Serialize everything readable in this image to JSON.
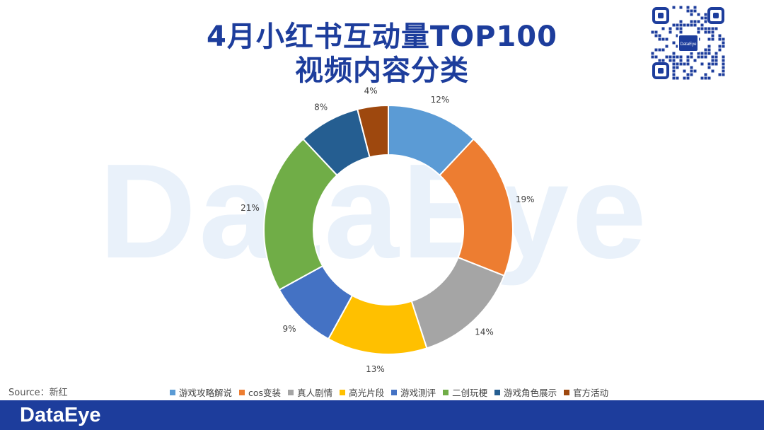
{
  "header": {
    "title_line1": "4月小红书互动量TOP100",
    "title_line2": "视频内容分类"
  },
  "watermark_text": "DataEye",
  "qr_badge_text": "DataEye",
  "source": "Source：新红",
  "footer": {
    "brand": "DataEye"
  },
  "chart_data": {
    "type": "pie",
    "donut": true,
    "categories": [
      "游戏攻略解说",
      "cos变装",
      "真人剧情",
      "高光片段",
      "游戏测评",
      "二创玩梗",
      "游戏角色展示",
      "官方活动"
    ],
    "values": [
      12,
      19,
      14,
      13,
      9,
      21,
      8,
      4
    ],
    "labels": [
      "12%",
      "19%",
      "14%",
      "13%",
      "9%",
      "21%",
      "8%",
      "4%"
    ],
    "colors": [
      "#5b9bd5",
      "#ed7d31",
      "#a5a5a5",
      "#ffc000",
      "#4472c4",
      "#70ad47",
      "#255e91",
      "#9e480e"
    ],
    "title": "",
    "legend_position": "bottom"
  }
}
